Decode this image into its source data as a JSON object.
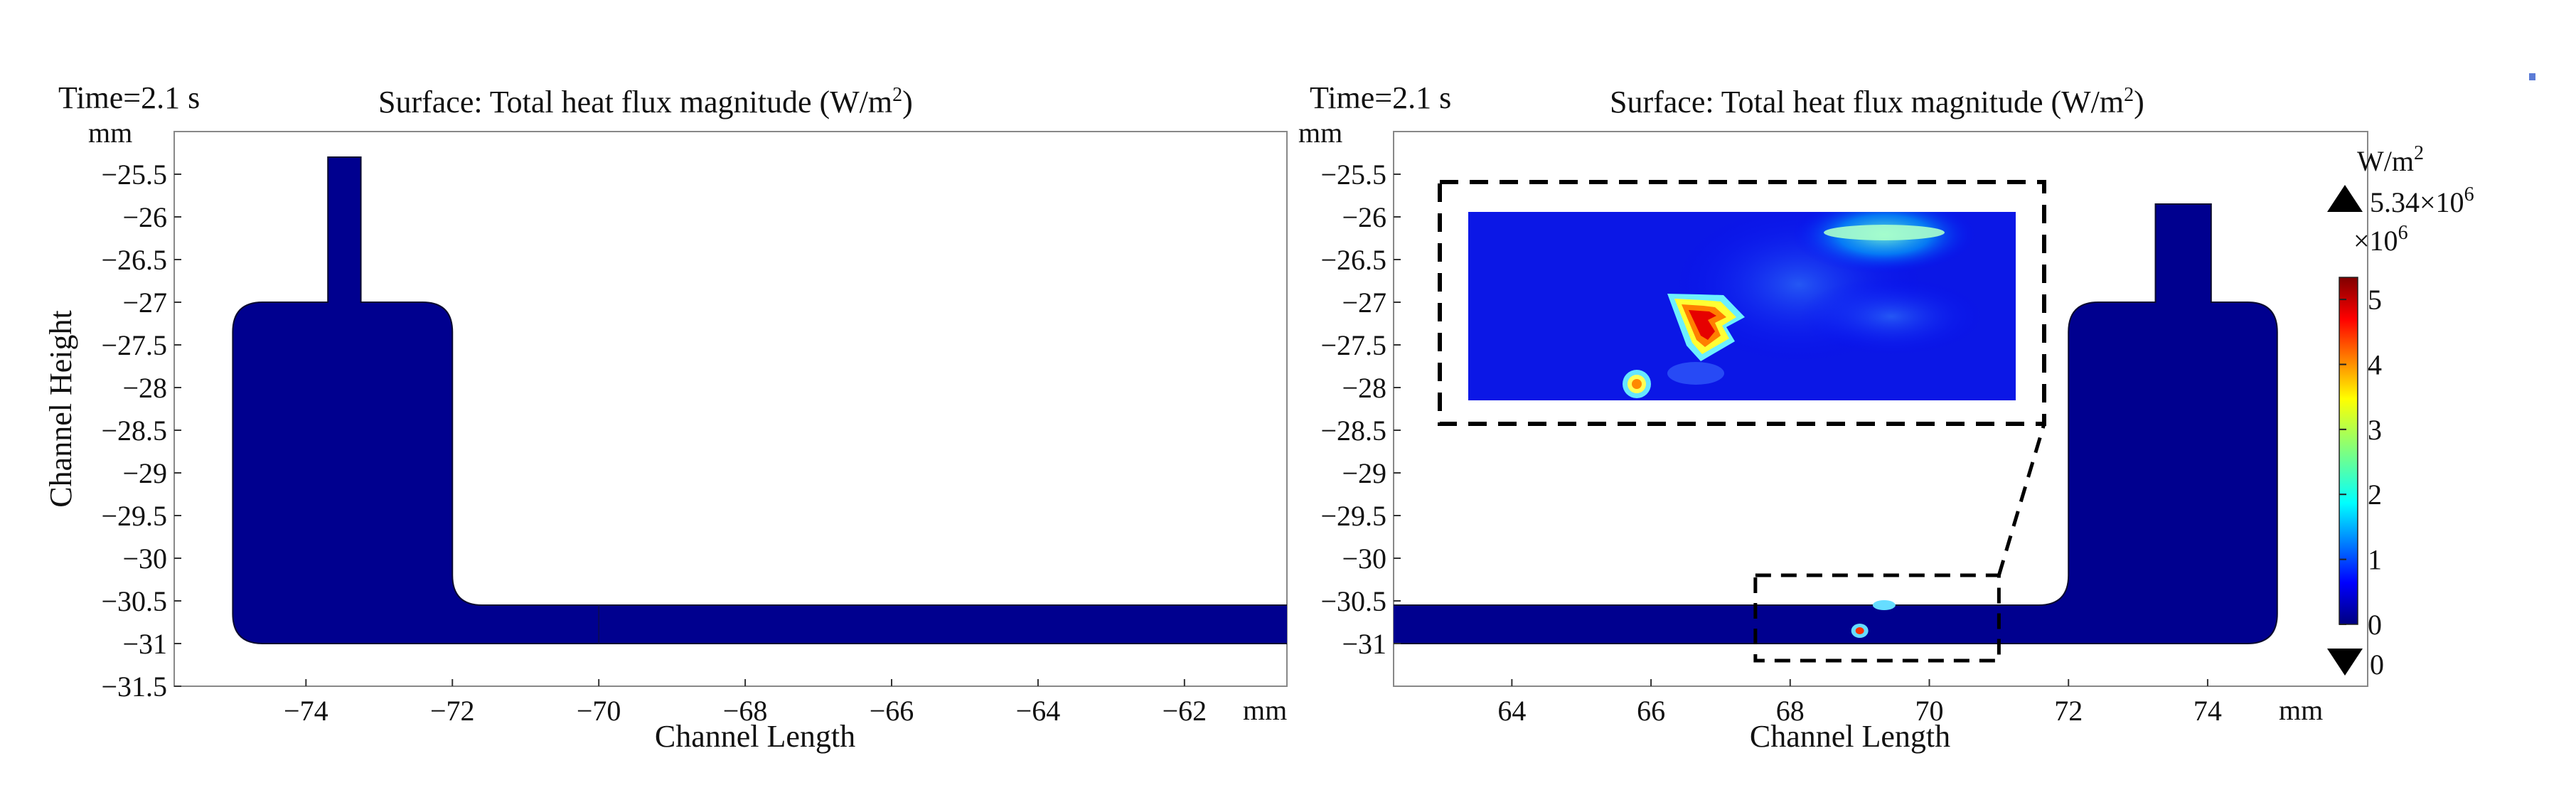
{
  "chart_data": [
    {
      "type": "heatmap",
      "panel": "left",
      "time_label": "Time=2.1 s",
      "title": "Surface: Total heat flux magnitude (W/m",
      "title_sup": "2",
      "title_close": ")",
      "xlabel": "Channel Length",
      "ylabel": "Channel Height",
      "x_unit": "mm",
      "y_unit": "mm",
      "xlim": [
        -75.8,
        -60.6
      ],
      "ylim": [
        -31.5,
        -25
      ],
      "x_ticks": [
        -74,
        -72,
        -70,
        -68,
        -66,
        -64,
        -62
      ],
      "y_ticks": [
        -25.5,
        -26,
        -26.5,
        -27,
        -27.5,
        -28,
        -28.5,
        -29,
        -29.5,
        -30,
        -30.5,
        -31,
        -31.5
      ],
      "heat_spots": []
    },
    {
      "type": "heatmap",
      "panel": "right",
      "time_label": "Time=2.1 s",
      "title": "Surface: Total heat flux magnitude (W/m",
      "title_sup": "2",
      "title_close": ")",
      "xlabel": "Channel Length",
      "x_unit": "mm",
      "y_unit": "mm",
      "xlim": [
        62.3,
        76.3
      ],
      "ylim": [
        -31.5,
        -25
      ],
      "x_ticks": [
        64,
        66,
        68,
        70,
        72,
        74
      ],
      "y_ticks": [
        -25.5,
        -26,
        -26.5,
        -27,
        -27.5,
        -28,
        -28.5,
        -29,
        -29.5,
        -30,
        -30.5,
        -31
      ],
      "heat_spots": [
        {
          "x": 69.0,
          "y": -30.85,
          "value": 5.0
        },
        {
          "x": 69.35,
          "y": -30.55,
          "value": 1.8
        }
      ],
      "inset": {
        "region_x": [
          67.5,
          71.0
        ],
        "region_y": [
          -31.2,
          -30.2
        ],
        "hotspots": [
          {
            "name": "large-hotspot",
            "value": 5.34
          },
          {
            "name": "small-hotspot",
            "value": 4.0
          },
          {
            "name": "upper-flux-band",
            "value": 1.8
          }
        ]
      },
      "colorbar": {
        "unit_base": "W/m",
        "unit_sup": "2",
        "max_label_base": "5.34×10",
        "max_label_sup": "6",
        "scale_base": "×10",
        "scale_sup": "6",
        "ticks": [
          5,
          4,
          3,
          2,
          1,
          0
        ],
        "min_label": "0",
        "range": [
          0,
          5.34
        ],
        "colors": [
          "#00007f",
          "#0000ff",
          "#007fff",
          "#00ffff",
          "#7fff7f",
          "#ffff00",
          "#ff7f00",
          "#ff0000",
          "#7f0000"
        ]
      }
    }
  ]
}
